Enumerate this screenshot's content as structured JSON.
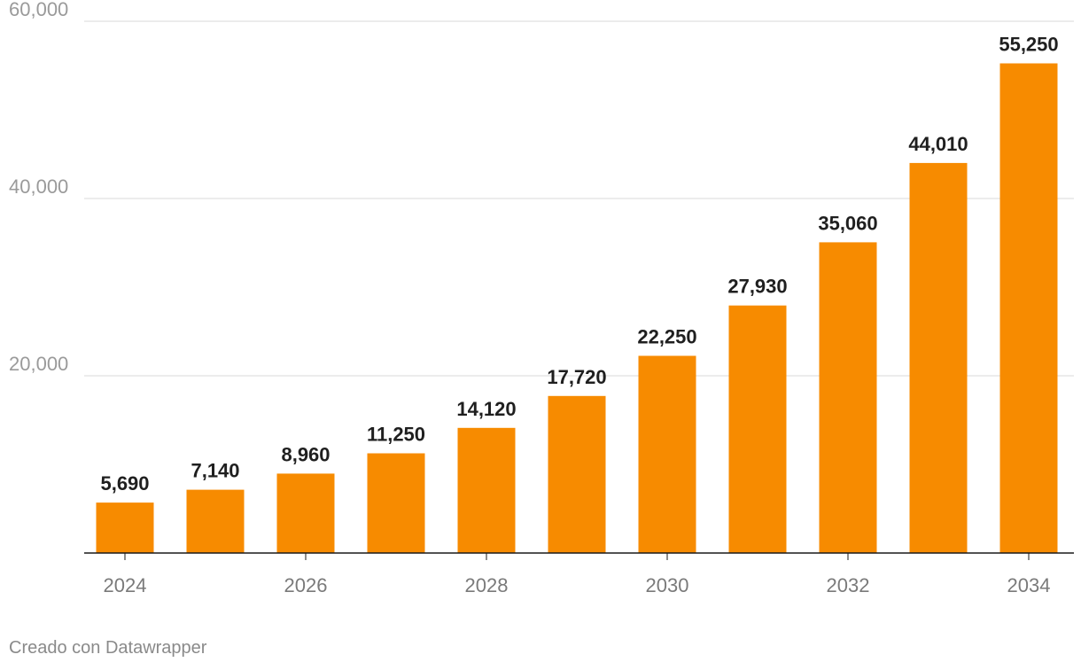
{
  "chart_data": {
    "type": "bar",
    "categories": [
      "2024",
      "2025",
      "2026",
      "2027",
      "2028",
      "2029",
      "2030",
      "2031",
      "2032",
      "2033",
      "2034"
    ],
    "values": [
      5690,
      7140,
      8960,
      11250,
      14120,
      17720,
      22250,
      27930,
      35060,
      44010,
      55250
    ],
    "value_labels": [
      "5,690",
      "7,140",
      "8,960",
      "11,250",
      "14,120",
      "17,720",
      "22,250",
      "27,930",
      "35,060",
      "44,010",
      "55,250"
    ],
    "x_tick_labels": [
      "2024",
      "",
      "2026",
      "",
      "2028",
      "",
      "2030",
      "",
      "2032",
      "",
      "2034"
    ],
    "y_ticks": [
      20000,
      40000,
      60000
    ],
    "y_tick_labels": [
      "20,000",
      "40,000",
      "60,000"
    ],
    "ylim": [
      0,
      60000
    ],
    "title": "",
    "xlabel": "",
    "ylabel": "",
    "grid": true,
    "bar_color": "#f78b00"
  },
  "credit": "Creado con Datawrapper"
}
